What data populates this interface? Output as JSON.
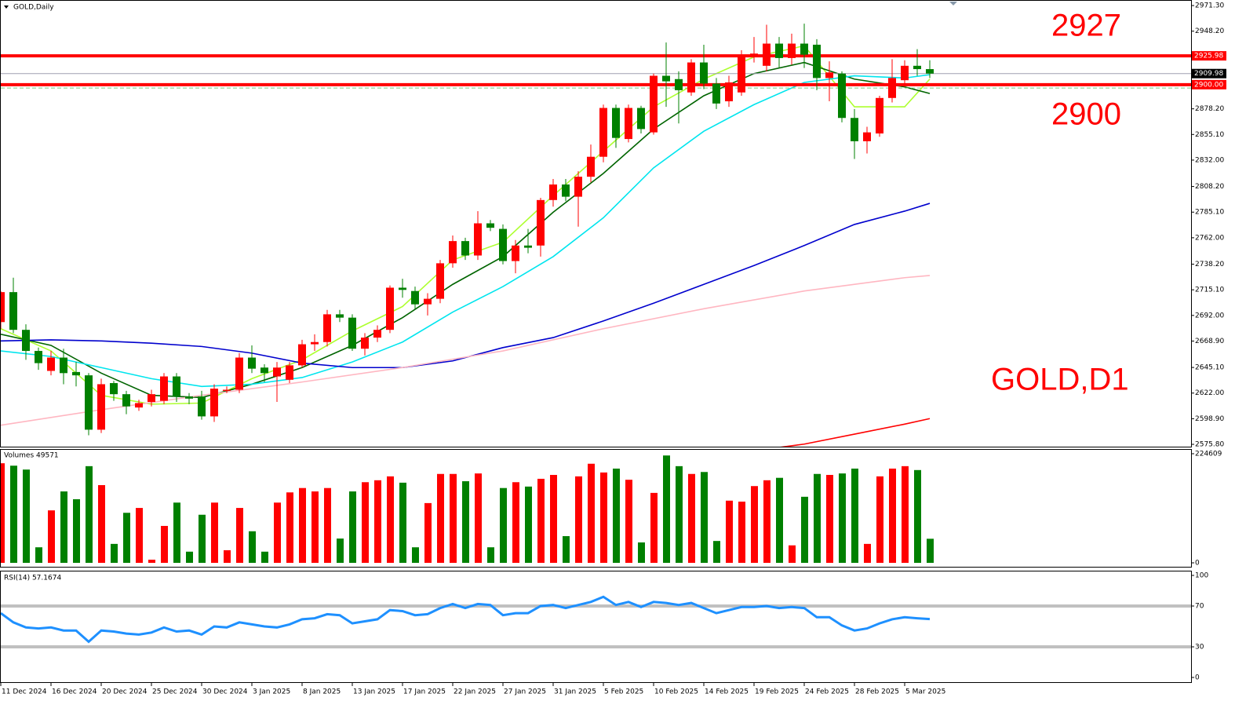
{
  "chart_data": [
    {
      "type": "candlestick",
      "title": "GOLD,Daily",
      "annotations": [
        "2927",
        "2900",
        "GOLD,D1"
      ],
      "categories": [
        "11 Dec 2024",
        null,
        null,
        null,
        "16 Dec 2024",
        null,
        null,
        null,
        "20 Dec 2024",
        null,
        null,
        null,
        "25 Dec 2024",
        null,
        null,
        null,
        "30 Dec 2024",
        null,
        null,
        null,
        "3 Jan 2025",
        null,
        null,
        null,
        "8 Jan 2025",
        null,
        null,
        null,
        "13 Jan 2025",
        null,
        null,
        null,
        "17 Jan 2025",
        null,
        null,
        null,
        "22 Jan 2025",
        null,
        null,
        null,
        "27 Jan 2025",
        null,
        null,
        null,
        "31 Jan 2025",
        null,
        null,
        null,
        "5 Feb 2025",
        null,
        null,
        null,
        "10 Feb 2025",
        null,
        null,
        null,
        "14 Feb 2025",
        null,
        null,
        null,
        "19 Feb 2025",
        null,
        null,
        null,
        "24 Feb 2025",
        null,
        null,
        null,
        "28 Feb 2025",
        null,
        null,
        null,
        "5 Mar 2025",
        null,
        null
      ],
      "open": [
        2686,
        2713,
        2679,
        2660,
        2642,
        2654,
        2641,
        2638,
        2589,
        2631,
        2621,
        2609,
        2614,
        2615,
        2637,
        2619,
        2619,
        2601,
        2624,
        2625,
        2654,
        2645,
        2637,
        2634,
        2647,
        2666,
        2668,
        2693,
        2690,
        2662,
        2672,
        2679,
        2717,
        2714,
        2702,
        2707,
        2739,
        2759,
        2746,
        2775,
        2770,
        2741,
        2755,
        2755,
        2796,
        2810,
        2799,
        2817,
        2835,
        2879,
        2851,
        2879,
        2857,
        2908,
        2905,
        2893,
        2920,
        2901,
        2885,
        2893,
        2926,
        2917,
        2937,
        2924,
        2937,
        2936,
        2906,
        2910,
        2870,
        2849,
        2856,
        2888,
        2904,
        2917,
        2914
      ],
      "high": [
        2714,
        2726,
        2684,
        2663,
        2660,
        2662,
        2650,
        2640,
        2635,
        2633,
        2624,
        2616,
        2625,
        2640,
        2640,
        2622,
        2624,
        2630,
        2628,
        2658,
        2665,
        2648,
        2650,
        2650,
        2670,
        2675,
        2697,
        2697,
        2693,
        2676,
        2683,
        2719,
        2725,
        2718,
        2712,
        2742,
        2764,
        2762,
        2786,
        2778,
        2774,
        2760,
        2770,
        2798,
        2815,
        2815,
        2822,
        2846,
        2882,
        2882,
        2882,
        2881,
        2910,
        2938,
        2912,
        2923,
        2936,
        2906,
        2908,
        2931,
        2943,
        2954,
        2943,
        2946,
        2955,
        2941,
        2921,
        2912,
        2878,
        2862,
        2890,
        2923,
        2922,
        2932,
        2922
      ],
      "low": [
        2680,
        2676,
        2652,
        2643,
        2638,
        2630,
        2628,
        2584,
        2586,
        2615,
        2603,
        2606,
        2610,
        2612,
        2614,
        2612,
        2598,
        2596,
        2622,
        2622,
        2640,
        2632,
        2614,
        2631,
        2645,
        2660,
        2664,
        2686,
        2660,
        2656,
        2668,
        2676,
        2708,
        2698,
        2692,
        2703,
        2735,
        2742,
        2742,
        2768,
        2738,
        2730,
        2748,
        2745,
        2790,
        2795,
        2772,
        2812,
        2830,
        2843,
        2848,
        2856,
        2855,
        2880,
        2865,
        2890,
        2896,
        2878,
        2880,
        2890,
        2920,
        2912,
        2915,
        2918,
        2915,
        2895,
        2885,
        2866,
        2833,
        2838,
        2853,
        2884,
        2898,
        2908,
        2906
      ],
      "close": [
        2713,
        2679,
        2660,
        2649,
        2654,
        2640,
        2638,
        2589,
        2630,
        2621,
        2610,
        2613,
        2621,
        2637,
        2619,
        2617,
        2601,
        2626,
        2625,
        2654,
        2644,
        2640,
        2645,
        2647,
        2666,
        2668,
        2693,
        2690,
        2662,
        2672,
        2679,
        2717,
        2715,
        2702,
        2707,
        2739,
        2759,
        2746,
        2775,
        2771,
        2741,
        2755,
        2753,
        2796,
        2810,
        2799,
        2817,
        2835,
        2879,
        2852,
        2879,
        2860,
        2908,
        2903,
        2895,
        2920,
        2901,
        2883,
        2902,
        2927,
        2928,
        2937,
        2924,
        2937,
        2927,
        2906,
        2911,
        2870,
        2849,
        2857,
        2888,
        2906,
        2917,
        2914,
        2909.98
      ],
      "up_color": "#ff0000",
      "down_color": "#008000",
      "series": [
        {
          "color": "#adff2f",
          "x": [
            0,
            4,
            8,
            12,
            16,
            20,
            24,
            28,
            32,
            36,
            40,
            44,
            48,
            52,
            56,
            60,
            64,
            68,
            72,
            74
          ],
          "values": [
            2680,
            2660,
            2620,
            2612,
            2613,
            2635,
            2652,
            2678,
            2700,
            2742,
            2758,
            2800,
            2840,
            2880,
            2905,
            2925,
            2935,
            2880,
            2880,
            2905
          ]
        },
        {
          "color": "#006400",
          "x": [
            0,
            4,
            8,
            12,
            16,
            20,
            24,
            28,
            32,
            36,
            40,
            44,
            48,
            52,
            56,
            60,
            64,
            68,
            72,
            74
          ],
          "values": [
            2675,
            2665,
            2640,
            2620,
            2618,
            2630,
            2645,
            2665,
            2690,
            2720,
            2745,
            2785,
            2820,
            2860,
            2890,
            2910,
            2920,
            2905,
            2898,
            2892
          ]
        },
        {
          "color": "#00e5ee",
          "x": [
            0,
            4,
            8,
            12,
            16,
            20,
            24,
            28,
            32,
            36,
            40,
            44,
            48,
            52,
            56,
            60,
            64,
            68,
            72,
            74
          ],
          "values": [
            2660,
            2655,
            2645,
            2635,
            2628,
            2630,
            2636,
            2650,
            2668,
            2695,
            2718,
            2745,
            2780,
            2825,
            2858,
            2882,
            2902,
            2908,
            2906,
            2909
          ]
        },
        {
          "color": "#0000cd",
          "x": [
            0,
            4,
            8,
            12,
            16,
            20,
            24,
            28,
            32,
            36,
            40,
            44,
            48,
            52,
            56,
            60,
            64,
            68,
            72,
            74
          ],
          "values": [
            2669,
            2670,
            2669,
            2667,
            2664,
            2658,
            2649,
            2645,
            2645,
            2651,
            2663,
            2672,
            2687,
            2703,
            2720,
            2737,
            2755,
            2774,
            2786,
            2793
          ]
        },
        {
          "color": "#ffb6c1",
          "x": [
            0,
            8,
            16,
            24,
            32,
            40,
            48,
            56,
            64,
            72,
            74
          ],
          "values": [
            2593,
            2607,
            2620,
            2632,
            2645,
            2660,
            2680,
            2698,
            2714,
            2726,
            2728
          ]
        },
        {
          "color": "#ff0000",
          "x": [
            62,
            64,
            68,
            72,
            74
          ],
          "values": [
            2573,
            2576,
            2585,
            2594,
            2599
          ]
        }
      ],
      "levels": [
        {
          "value": 2925.98,
          "label": "2925.98",
          "color": "#ff0000",
          "width": 4
        },
        {
          "value": 2909.98,
          "label": "2909.98",
          "color": "#a0a0b0",
          "width": 1,
          "label_bg": "#000000"
        },
        {
          "value": 2900,
          "label": "2900.00",
          "color": "#ff0000",
          "width": 4
        },
        {
          "value": 2897,
          "color": "#7fc97f",
          "width": 1,
          "dash": true
        }
      ],
      "ylim": [
        2573,
        2976.3
      ],
      "yticks": [
        {
          "value": 2575.8,
          "label": "2575.80"
        },
        {
          "value": 2598.9,
          "label": "2598.90"
        },
        {
          "value": 2622,
          "label": "2622.00"
        },
        {
          "value": 2645.1,
          "label": "2645.10"
        },
        {
          "value": 2668.9,
          "label": "2668.90"
        },
        {
          "value": 2692,
          "label": "2692.00"
        },
        {
          "value": 2715.1,
          "label": "2715.10"
        },
        {
          "value": 2738.2,
          "label": "2738.20"
        },
        {
          "value": 2762,
          "label": "2762.00"
        },
        {
          "value": 2785.1,
          "label": "2785.10"
        },
        {
          "value": 2808.2,
          "label": "2808.20"
        },
        {
          "value": 2832,
          "label": "2832.00"
        },
        {
          "value": 2855.1,
          "label": "2855.10"
        },
        {
          "value": 2878.2,
          "label": "2878.20"
        },
        {
          "value": 2948.2,
          "label": "2948.20"
        },
        {
          "value": 2971.3,
          "label": "2971.30"
        }
      ]
    },
    {
      "type": "bar",
      "title": "Volumes 49571",
      "values": [
        205000,
        200000,
        192000,
        32000,
        108000,
        147000,
        131000,
        199000,
        160000,
        39000,
        103000,
        113000,
        6500,
        76000,
        124000,
        23000,
        99000,
        124000,
        26000,
        113000,
        65000,
        23000,
        124000,
        145000,
        154000,
        147000,
        154000,
        50000,
        147000,
        166000,
        170000,
        178000,
        165000,
        32000,
        123000,
        183000,
        183000,
        168000,
        184000,
        32000,
        154000,
        166000,
        157000,
        173000,
        181000,
        55000,
        178000,
        204000,
        186000,
        194000,
        171000,
        42000,
        144000,
        221000,
        199000,
        183000,
        187000,
        45000,
        128000,
        126000,
        158000,
        170000,
        175000,
        36000,
        136000,
        183000,
        181000,
        184000,
        194000,
        39000,
        178000,
        194000,
        199000,
        191000,
        49571
      ],
      "ylim": [
        0,
        224609
      ],
      "yticks": [
        0,
        224609
      ]
    },
    {
      "type": "line",
      "title": "RSI(14) 57.1674",
      "color": "#1e90ff",
      "values": [
        63,
        54,
        49,
        48,
        49,
        46,
        46,
        35,
        46,
        45,
        43,
        42,
        44,
        49,
        45,
        46,
        42,
        50,
        49,
        54,
        52,
        50,
        49,
        52,
        57,
        58,
        62,
        61,
        53,
        55,
        57,
        66,
        65,
        61,
        62,
        68,
        72,
        68,
        72,
        71,
        61,
        63,
        63,
        70,
        71,
        68,
        71,
        74,
        79,
        71,
        74,
        69,
        74,
        73,
        71,
        73,
        68,
        63,
        66,
        69,
        69,
        70,
        68,
        69,
        68,
        59,
        59,
        51,
        46,
        48,
        53,
        57,
        59,
        58,
        57.1674
      ],
      "ylim": [
        0,
        100
      ],
      "yticks": [
        0,
        30,
        70,
        100
      ],
      "levels": [
        30,
        70
      ]
    }
  ]
}
